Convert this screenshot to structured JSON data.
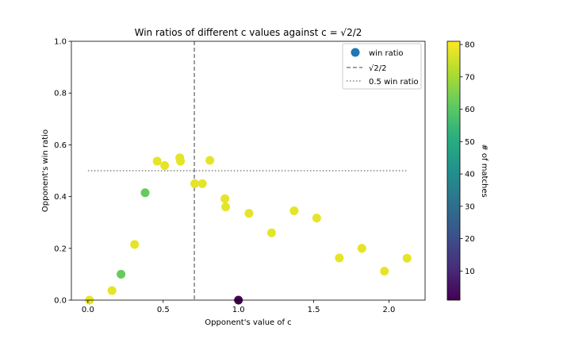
{
  "chart_data": {
    "type": "scatter",
    "title": "Win ratios of different c values against c = √2/2",
    "xlabel": "Opponent's value of c",
    "ylabel": "Opponent's win ratio",
    "xlim": [
      -0.11,
      2.24
    ],
    "ylim": [
      0.0,
      1.0
    ],
    "xticks": [
      0.0,
      0.5,
      1.0,
      1.5,
      2.0
    ],
    "xtick_labels": [
      "0.0",
      "0.5",
      "1.0",
      "1.5",
      "2.0"
    ],
    "yticks": [
      0.0,
      0.2,
      0.4,
      0.6,
      0.8,
      1.0
    ],
    "ytick_labels": [
      "0.0",
      "0.2",
      "0.4",
      "0.6",
      "0.8",
      "1.0"
    ],
    "grid": false,
    "legend_position": "top-right",
    "legend": [
      "win ratio",
      "√2/2",
      "0.5 win ratio"
    ],
    "colorbar": {
      "label": "# of matches",
      "colormap": "viridis",
      "range": [
        1,
        81
      ],
      "ticks": [
        10,
        20,
        30,
        40,
        50,
        60,
        70,
        80
      ],
      "tick_labels": [
        "10",
        "20",
        "30",
        "40",
        "50",
        "60",
        "70",
        "80"
      ]
    },
    "reference_lines": [
      {
        "orientation": "vertical",
        "x": 0.7071,
        "style": "dashed",
        "color": "#808080"
      },
      {
        "orientation": "horizontal",
        "y": 0.5,
        "x_range": [
          0.0,
          2.12
        ],
        "style": "dotted",
        "color": "#808080"
      }
    ],
    "points": [
      {
        "x": 0.01,
        "y": 0.0,
        "matches": 78
      },
      {
        "x": 0.16,
        "y": 0.037,
        "matches": 78
      },
      {
        "x": 0.22,
        "y": 0.1,
        "matches": 62
      },
      {
        "x": 0.31,
        "y": 0.215,
        "matches": 78
      },
      {
        "x": 0.38,
        "y": 0.415,
        "matches": 62
      },
      {
        "x": 0.46,
        "y": 0.537,
        "matches": 78
      },
      {
        "x": 0.51,
        "y": 0.52,
        "matches": 78
      },
      {
        "x": 0.61,
        "y": 0.55,
        "matches": 78
      },
      {
        "x": 0.615,
        "y": 0.537,
        "matches": 78
      },
      {
        "x": 0.71,
        "y": 0.45,
        "matches": 78
      },
      {
        "x": 0.76,
        "y": 0.45,
        "matches": 78
      },
      {
        "x": 0.81,
        "y": 0.54,
        "matches": 78
      },
      {
        "x": 0.91,
        "y": 0.392,
        "matches": 78
      },
      {
        "x": 0.915,
        "y": 0.36,
        "matches": 78
      },
      {
        "x": 1.0,
        "y": 0.0,
        "matches": 1
      },
      {
        "x": 1.07,
        "y": 0.335,
        "matches": 78
      },
      {
        "x": 1.22,
        "y": 0.26,
        "matches": 78
      },
      {
        "x": 1.37,
        "y": 0.345,
        "matches": 78
      },
      {
        "x": 1.52,
        "y": 0.317,
        "matches": 78
      },
      {
        "x": 1.67,
        "y": 0.163,
        "matches": 78
      },
      {
        "x": 1.82,
        "y": 0.2,
        "matches": 78
      },
      {
        "x": 1.97,
        "y": 0.112,
        "matches": 78
      },
      {
        "x": 2.12,
        "y": 0.162,
        "matches": 78
      }
    ]
  },
  "colors": {
    "legend_marker": "#1f77b4",
    "reference_line": "#808080"
  }
}
